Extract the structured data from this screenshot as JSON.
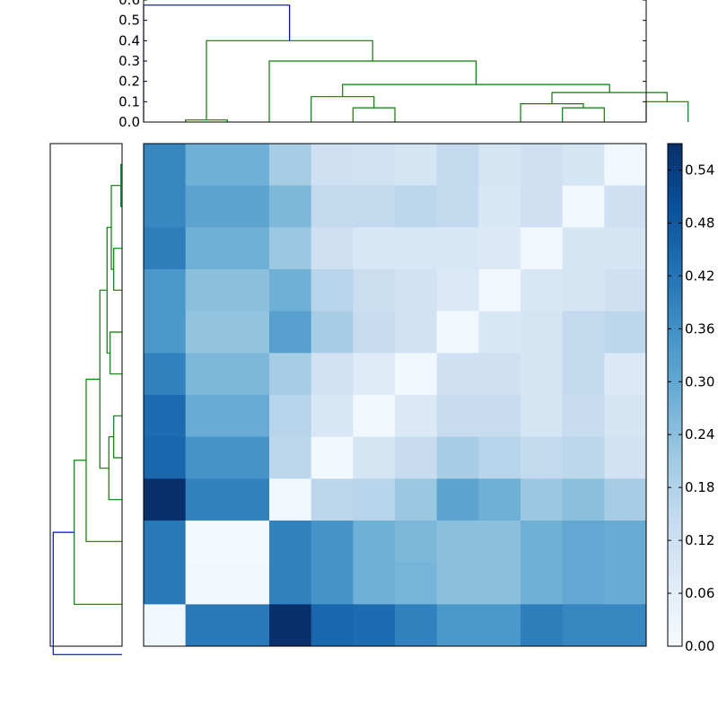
{
  "chart_data": [
    {
      "type": "dendrogram",
      "panel": "top",
      "ylim": [
        0,
        0.6
      ],
      "yticks": [
        "0.0",
        "0.1",
        "0.2",
        "0.3",
        "0.4",
        "0.5",
        "0.6"
      ],
      "colors": {
        "root": "#0000ff",
        "cluster": "#008000"
      },
      "links": [
        {
          "x": [
            0.5,
            0.5,
            1.5,
            1.5
          ],
          "y": [
            0.0,
            0.01,
            0.01,
            0.0
          ],
          "color": "#008000"
        },
        {
          "x": [
            4.5,
            4.5,
            5.5,
            5.5
          ],
          "y": [
            0.0,
            0.07,
            0.07,
            0.0
          ],
          "color": "#008000"
        },
        {
          "x": [
            9.5,
            9.5,
            10.5,
            10.5
          ],
          "y": [
            0.0,
            0.07,
            0.07,
            0.0
          ],
          "color": "#008000"
        },
        {
          "x": [
            3.5,
            3.5,
            5.0,
            5.0
          ],
          "y": [
            0.0,
            0.125,
            0.125,
            0.07
          ],
          "color": "#008000"
        },
        {
          "x": [
            8.5,
            8.5,
            10.0,
            10.0
          ],
          "y": [
            0.0,
            0.09,
            0.09,
            0.07
          ],
          "color": "#008000"
        },
        {
          "x": [
            11.5,
            11.5,
            12.5,
            12.5
          ],
          "y": [
            0.0,
            0.1,
            0.1,
            0.0
          ],
          "color": "#008000"
        },
        {
          "x": [
            9.25,
            9.25,
            12.0,
            12.0
          ],
          "y": [
            0.09,
            0.145,
            0.145,
            0.1
          ],
          "color": "#008000"
        },
        {
          "x": [
            4.25,
            4.25,
            10.625,
            10.625
          ],
          "y": [
            0.125,
            0.185,
            0.185,
            0.145
          ],
          "color": "#008000"
        },
        {
          "x": [
            2.5,
            2.5,
            7.4375,
            7.4375
          ],
          "y": [
            0.0,
            0.3,
            0.3,
            0.185
          ],
          "color": "#008000"
        },
        {
          "x": [
            1.0,
            1.0,
            4.96875,
            4.96875
          ],
          "y": [
            0.01,
            0.4,
            0.4,
            0.3
          ],
          "color": "#008000"
        },
        {
          "x": [
            -0.5,
            -0.5,
            2.984375,
            2.984375
          ],
          "y": [
            0.0,
            0.575,
            0.575,
            0.4
          ],
          "color": "#0000ff"
        }
      ]
    },
    {
      "type": "dendrogram",
      "panel": "left",
      "links": [
        {
          "y": [
            0.0,
            0.0,
            1.0,
            1.0
          ],
          "x": [
            0.0,
            0.01,
            0.01,
            0.0
          ],
          "color": "#008000"
        },
        {
          "y": [
            2.0,
            2.0,
            3.0,
            3.0
          ],
          "x": [
            0.0,
            0.07,
            0.07,
            0.0
          ],
          "color": "#008000"
        },
        {
          "y": [
            6.0,
            6.0,
            7.0,
            7.0
          ],
          "x": [
            0.0,
            0.07,
            0.07,
            0.0
          ],
          "color": "#008000"
        },
        {
          "y": [
            4.0,
            4.0,
            5.0,
            5.0
          ],
          "x": [
            0.0,
            0.1,
            0.1,
            0.0
          ],
          "color": "#008000"
        },
        {
          "y": [
            0.5,
            0.5,
            2.5,
            2.5
          ],
          "x": [
            0.01,
            0.09,
            0.09,
            0.07
          ],
          "color": "#008000"
        },
        {
          "y": [
            1.5,
            1.5,
            4.5,
            4.5
          ],
          "x": [
            0.09,
            0.125,
            0.125,
            0.1
          ],
          "color": "#008000"
        },
        {
          "y": [
            6.5,
            6.5,
            8.0,
            8.0
          ],
          "x": [
            0.07,
            0.11,
            0.11,
            0.0
          ],
          "color": "#008000"
        },
        {
          "y": [
            3.0,
            3.0,
            7.25,
            7.25
          ],
          "x": [
            0.125,
            0.185,
            0.185,
            0.11
          ],
          "color": "#008000"
        },
        {
          "y": [
            5.125,
            5.125,
            9.0,
            9.0
          ],
          "x": [
            0.185,
            0.3,
            0.3,
            0.0
          ],
          "color": "#008000"
        },
        {
          "y": [
            7.0625,
            7.0625,
            10.5,
            10.5
          ],
          "x": [
            0.3,
            0.4,
            0.4,
            0.0
          ],
          "color": "#008000"
        },
        {
          "y": [
            8.78,
            8.78,
            11.7,
            11.7
          ],
          "x": [
            0.4,
            0.575,
            0.575,
            0.0
          ],
          "color": "#0000ff"
        }
      ]
    },
    {
      "type": "heatmap",
      "colormap": "Blues",
      "vmin": 0.0,
      "vmax": 0.57,
      "colorbar_ticks": [
        "0.00",
        "0.06",
        "0.12",
        "0.18",
        "0.24",
        "0.30",
        "0.36",
        "0.42",
        "0.48",
        "0.54"
      ],
      "values": [
        [
          0.38,
          0.28,
          0.28,
          0.2,
          0.12,
          0.11,
          0.1,
          0.15,
          0.1,
          0.12,
          0.1,
          0.02
        ],
        [
          0.38,
          0.31,
          0.31,
          0.26,
          0.15,
          0.15,
          0.16,
          0.15,
          0.09,
          0.12,
          0.02,
          0.12
        ],
        [
          0.4,
          0.28,
          0.28,
          0.22,
          0.12,
          0.09,
          0.09,
          0.09,
          0.08,
          0.02,
          0.1,
          0.1
        ],
        [
          0.34,
          0.24,
          0.24,
          0.28,
          0.17,
          0.13,
          0.11,
          0.08,
          0.02,
          0.09,
          0.1,
          0.12
        ],
        [
          0.34,
          0.23,
          0.23,
          0.32,
          0.2,
          0.14,
          0.11,
          0.02,
          0.09,
          0.1,
          0.15,
          0.16
        ],
        [
          0.39,
          0.26,
          0.26,
          0.2,
          0.11,
          0.07,
          0.02,
          0.12,
          0.12,
          0.1,
          0.15,
          0.08
        ],
        [
          0.44,
          0.29,
          0.29,
          0.17,
          0.09,
          0.02,
          0.08,
          0.14,
          0.14,
          0.1,
          0.14,
          0.1
        ],
        [
          0.45,
          0.35,
          0.35,
          0.16,
          0.02,
          0.1,
          0.14,
          0.2,
          0.17,
          0.15,
          0.16,
          0.11
        ],
        [
          0.57,
          0.39,
          0.39,
          0.02,
          0.16,
          0.17,
          0.22,
          0.31,
          0.28,
          0.22,
          0.24,
          0.2
        ],
        [
          0.41,
          0.01,
          0.01,
          0.39,
          0.35,
          0.28,
          0.26,
          0.24,
          0.24,
          0.28,
          0.3,
          0.29
        ],
        [
          0.41,
          0.02,
          0.02,
          0.39,
          0.35,
          0.28,
          0.27,
          0.24,
          0.24,
          0.28,
          0.3,
          0.29
        ],
        [
          0.02,
          0.41,
          0.41,
          0.57,
          0.45,
          0.44,
          0.39,
          0.34,
          0.34,
          0.4,
          0.38,
          0.38
        ]
      ]
    }
  ]
}
